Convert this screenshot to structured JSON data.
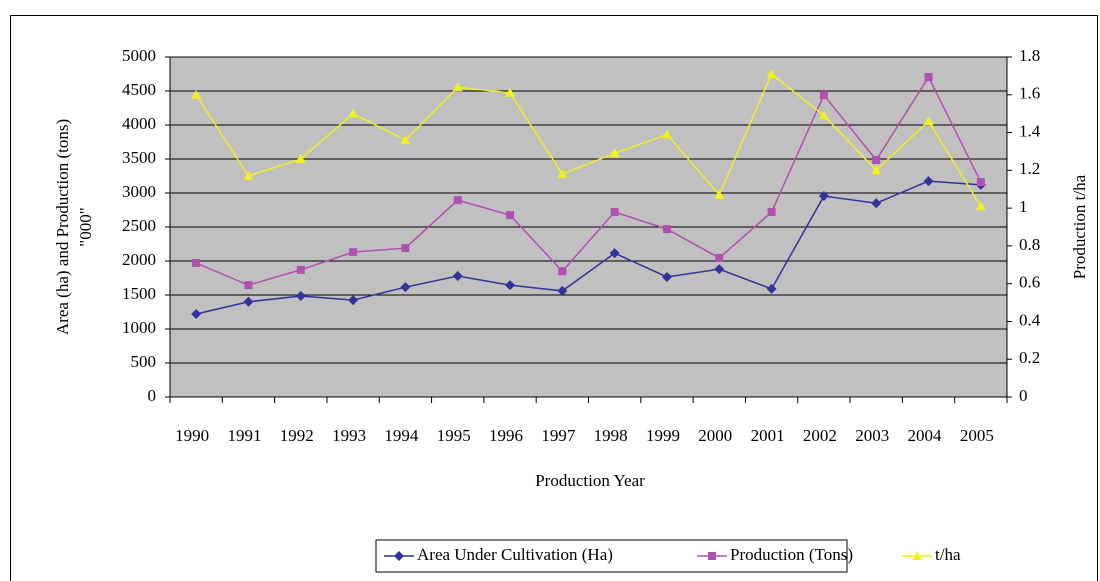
{
  "chart_data": {
    "type": "line",
    "ylabel": [
      "Area (ha) and Production (tons)",
      "\"000\""
    ],
    "y2label": "Production t/ha",
    "xlabel": "Production Year",
    "categories": [
      "1990",
      "1991",
      "1992",
      "1993",
      "1994",
      "1995",
      "1996",
      "1997",
      "1998",
      "1999",
      "2000",
      "2001",
      "2002",
      "2003",
      "2004",
      "2005"
    ],
    "series": [
      {
        "name": "Area Under Cultivation (Ha)",
        "color": "#333399",
        "marker": "diamond",
        "values": [
          1220,
          1400,
          1485,
          1425,
          1615,
          1780,
          1645,
          1560,
          2115,
          1765,
          1880,
          1590,
          2955,
          2850,
          3175,
          3120
        ]
      },
      {
        "name": "Production (Tons)",
        "color": "#b050b0",
        "marker": "square",
        "values": [
          1970,
          1645,
          1870,
          2130,
          2190,
          2895,
          2675,
          1850,
          2720,
          2470,
          2045,
          2720,
          4440,
          3485,
          4705,
          3160
        ]
      },
      {
        "name": "t/ha",
        "color": "#f0f020",
        "marker": "triangle",
        "axis": "y2",
        "values": [
          1.6,
          1.17,
          1.26,
          1.5,
          1.36,
          1.64,
          1.61,
          1.18,
          1.29,
          1.39,
          1.07,
          1.71,
          1.49,
          1.2,
          1.46,
          1.01
        ]
      }
    ],
    "ylim": [
      0,
      5000
    ],
    "yticks": [
      0,
      500,
      1000,
      1500,
      2000,
      2500,
      3000,
      3500,
      4000,
      4500,
      5000
    ],
    "y2lim": [
      0,
      1.8
    ],
    "y2ticks": [
      0,
      0.2,
      0.4,
      0.6,
      0.8,
      1,
      1.2,
      1.4,
      1.6,
      1.8
    ],
    "grid": true,
    "legend": "bottom",
    "background": "#c0c0c0"
  }
}
